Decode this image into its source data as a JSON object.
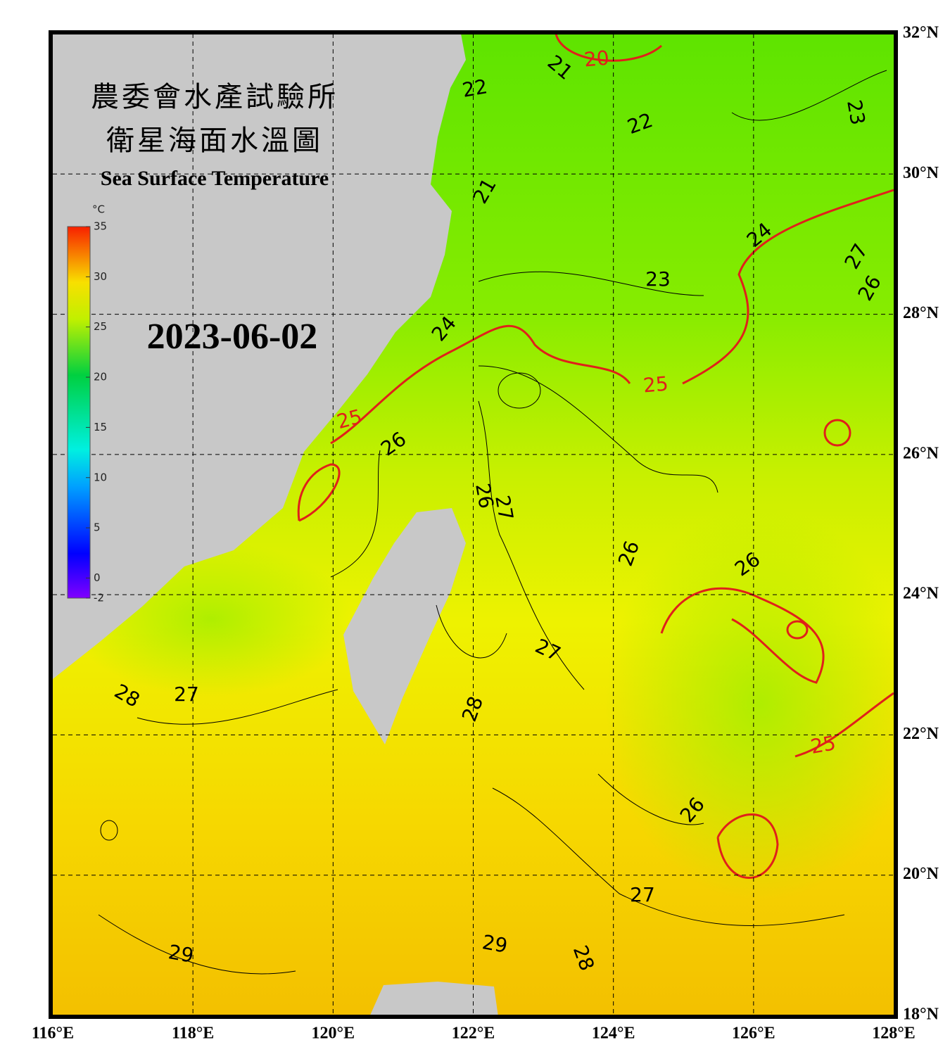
{
  "header": {
    "title_zh_1": "農委會水產試驗所",
    "title_zh_2": "衛星海面水溫圖",
    "title_en": "Sea Surface Temperature",
    "date": "2023-06-02"
  },
  "colorbar": {
    "unit": "°C",
    "lim": [
      -2,
      35
    ],
    "ticks": [
      35,
      30,
      25,
      20,
      15,
      10,
      5,
      0,
      -2
    ]
  },
  "map": {
    "lon_ticks": [
      {
        "value": 116,
        "label": "116°E"
      },
      {
        "value": 118,
        "label": "118°E"
      },
      {
        "value": 120,
        "label": "120°E"
      },
      {
        "value": 122,
        "label": "122°E"
      },
      {
        "value": 124,
        "label": "124°E"
      },
      {
        "value": 126,
        "label": "126°E"
      },
      {
        "value": 128,
        "label": "128°E"
      }
    ],
    "lat_ticks": [
      {
        "value": 32,
        "label": "32°N"
      },
      {
        "value": 30,
        "label": "30°N"
      },
      {
        "value": 28,
        "label": "28°N"
      },
      {
        "value": 26,
        "label": "26°N"
      },
      {
        "value": 24,
        "label": "24°N"
      },
      {
        "value": 22,
        "label": "22°N"
      },
      {
        "value": 20,
        "label": "20°N"
      },
      {
        "value": 18,
        "label": "18°N"
      }
    ],
    "lonlim": [
      116,
      128
    ],
    "latlim": [
      32,
      18
    ],
    "grid": true,
    "contour_labels": [
      20,
      21,
      22,
      22,
      23,
      21,
      24,
      23,
      27,
      26,
      24,
      25,
      25,
      26,
      26,
      27,
      26,
      26,
      27,
      28,
      27,
      28,
      25,
      26,
      27,
      29,
      29,
      28
    ],
    "highlight_levels": [
      20,
      25
    ],
    "highlight_color": "#e0201a",
    "contour_color": "#000000"
  }
}
